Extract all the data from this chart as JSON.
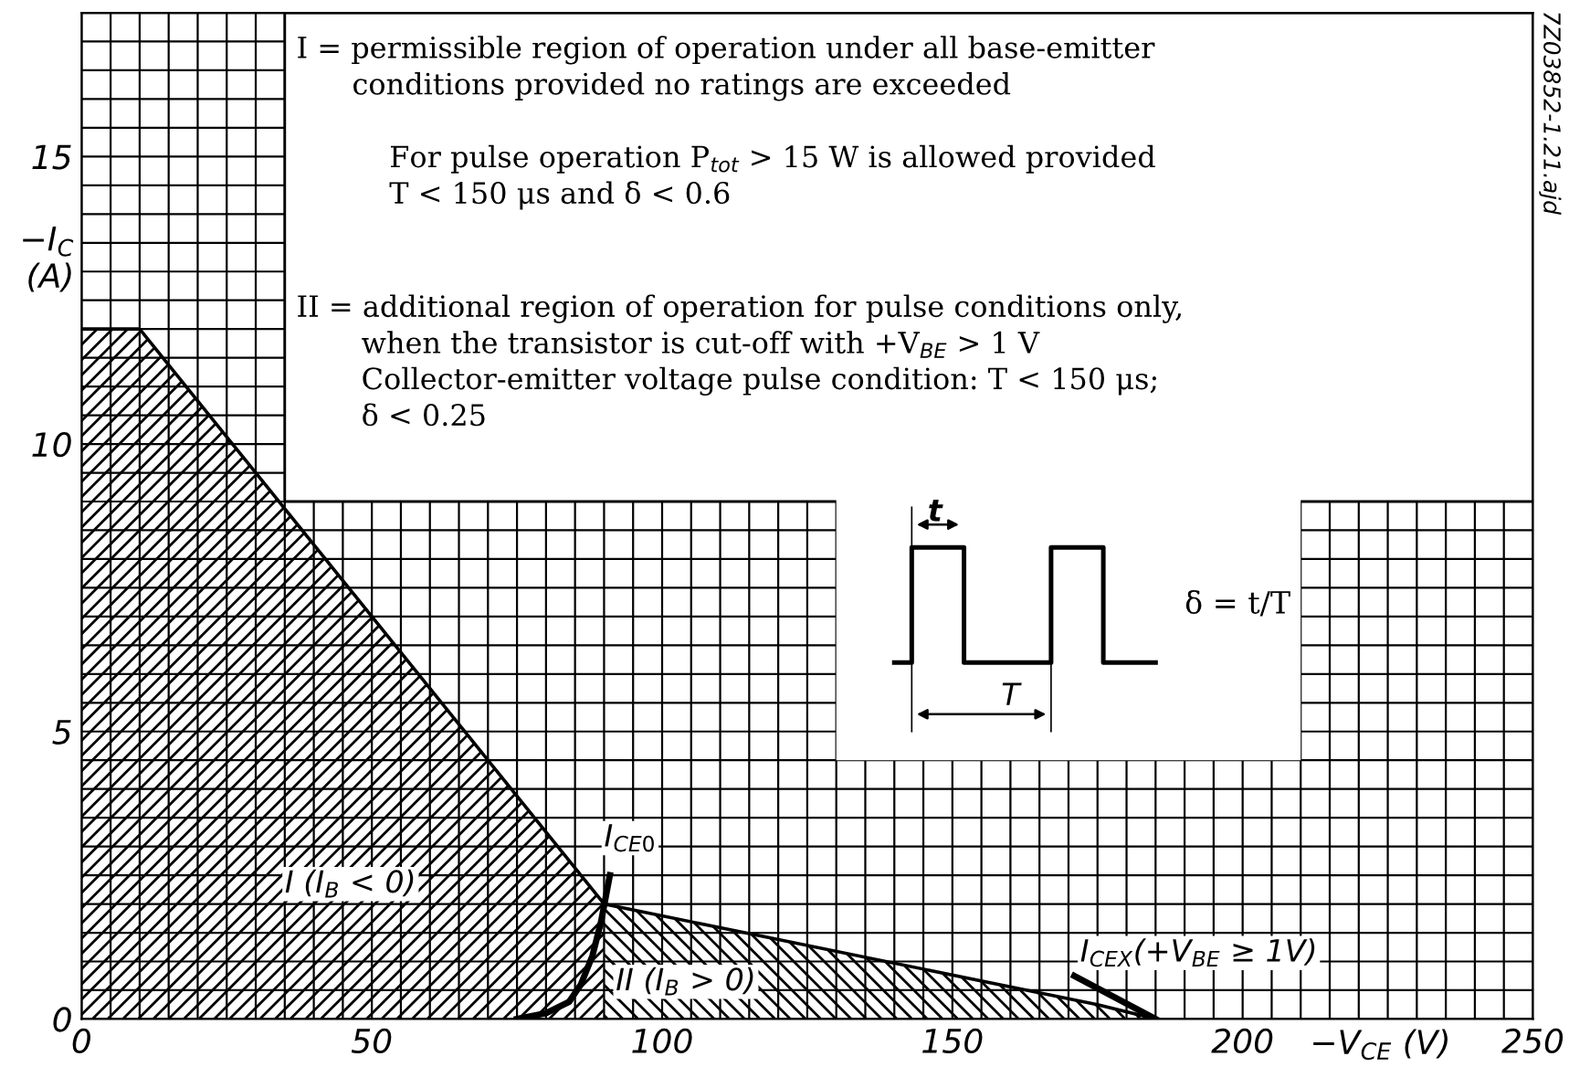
{
  "chart_data": {
    "type": "area",
    "xlabel": "−V$_{CE}$ (V)",
    "ylabel": "−I$_{C}$\n(A)",
    "xlim": [
      0,
      250
    ],
    "ylim": [
      0,
      17.5
    ],
    "xticks": [
      0,
      50,
      100,
      150,
      200,
      250
    ],
    "yticks": [
      0,
      5,
      10,
      15
    ],
    "grid": true,
    "series": [
      {
        "color": "#000000",
        "x": [
          0,
          10,
          90
        ],
        "values": [
          12,
          12,
          2
        ]
      },
      {
        "color": "#000000",
        "x": [
          90,
          175,
          185
        ],
        "values": [
          2,
          0.25,
          0
        ]
      },
      {
        "type": "line",
        "color": "#000000",
        "x": [
          75,
          80,
          84,
          86,
          88,
          89.5,
          91
        ],
        "values": [
          0,
          0.1,
          0.3,
          0.6,
          1.1,
          1.7,
          2.5
        ]
      },
      {
        "type": "line",
        "color": "#000000",
        "x": [
          171,
          185
        ],
        "values": [
          0.75,
          0
        ]
      }
    ],
    "annotations": [
      "I = permissible region of operation under all base-emitter\n      conditions provided no ratings are exceeded",
      "For pulse operation P$_{tot}$ > 15 W is allowed provided\nT < 150 μs and δ < 0.6",
      "II = additional region of operation for pulse conditions only,\n       when the transistor is cut-off with +V$_{BE}$ > 1 V\n       Collector-emitter voltage pulse condition: T < 150 μs;\n       δ < 0.25",
      "7Z03852-1.21.ajd",
      "I (I$_{B}$ < 0)",
      "II (I$_{B}$ > 0)",
      "I$_{CE0}$",
      "I$_{CEX}$(+V$_{BE}$ ≥ 1V)",
      "t",
      "T",
      "δ = t/T"
    ]
  }
}
